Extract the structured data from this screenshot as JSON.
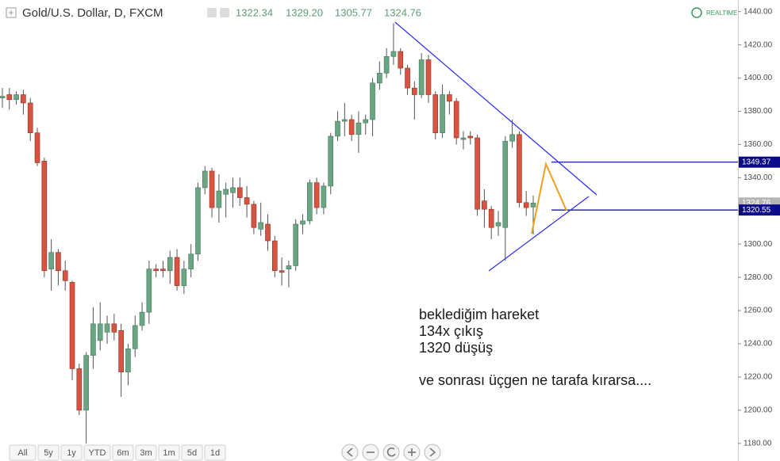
{
  "chart_data": {
    "type": "candlestick",
    "title": "Gold/U.S. Dollar, D, FXCM",
    "last_value_labels": [
      "1322.34",
      "1329.20",
      "1305.77",
      "1324.76"
    ],
    "status": "REALTIME",
    "up_color": "#6ba583",
    "down_color": "#d75442",
    "open": [
      1388,
      1390,
      1387,
      1390,
      1385,
      1367,
      1350,
      1285,
      1295,
      1284,
      1277,
      1225,
      1200,
      1233,
      1242,
      1247,
      1252,
      1248,
      1223,
      1237,
      1251,
      1259,
      1285,
      1285,
      1284,
      1292,
      1275,
      1285,
      1294,
      1334,
      1344,
      1322,
      1330,
      1331,
      1334,
      1328,
      1324,
      1309,
      1312,
      1302,
      1284,
      1285,
      1287,
      1312,
      1314,
      1337,
      1322,
      1335,
      1365,
      1374,
      1375,
      1366,
      1373,
      1375,
      1397,
      1403,
      1413,
      1416,
      1406,
      1394,
      1390,
      1411,
      1390,
      1367,
      1390,
      1386,
      1363,
      1365,
      1364,
      1326,
      1321,
      1311,
      1310,
      1362,
      1366,
      1325,
      1322.34
    ],
    "high": [
      1394,
      1394,
      1392,
      1393,
      1388,
      1370,
      1352,
      1303,
      1297,
      1290,
      1278,
      1228,
      1235,
      1262,
      1265,
      1257,
      1258,
      1252,
      1240,
      1257,
      1265,
      1290,
      1288,
      1290,
      1296,
      1297,
      1290,
      1300,
      1337,
      1347,
      1346,
      1342,
      1337,
      1340,
      1340,
      1335,
      1326,
      1325,
      1318,
      1305,
      1292,
      1290,
      1315,
      1318,
      1339,
      1340,
      1337,
      1367,
      1380,
      1385,
      1378,
      1380,
      1378,
      1400,
      1410,
      1418,
      1433,
      1418,
      1408,
      1398,
      1415,
      1414,
      1392,
      1396,
      1392,
      1388,
      1368,
      1368,
      1366,
      1333,
      1323,
      1320,
      1365,
      1375,
      1368,
      1332,
      1329.2
    ],
    "low": [
      1382,
      1381,
      1384,
      1378,
      1362,
      1347,
      1280,
      1272,
      1275,
      1272,
      1218,
      1197,
      1180,
      1225,
      1236,
      1240,
      1242,
      1208,
      1215,
      1232,
      1248,
      1252,
      1280,
      1280,
      1276,
      1272,
      1270,
      1280,
      1290,
      1330,
      1316,
      1313,
      1316,
      1322,
      1323,
      1316,
      1306,
      1305,
      1296,
      1280,
      1275,
      1274,
      1284,
      1306,
      1312,
      1318,
      1318,
      1330,
      1362,
      1365,
      1362,
      1355,
      1366,
      1365,
      1393,
      1400,
      1408,
      1402,
      1390,
      1375,
      1388,
      1385,
      1363,
      1364,
      1378,
      1360,
      1357,
      1360,
      1317,
      1310,
      1303,
      1305,
      1290,
      1358,
      1322,
      1317,
      1305.77
    ],
    "close": [
      1389,
      1387,
      1390,
      1385,
      1367,
      1349,
      1284,
      1295,
      1284,
      1278,
      1225,
      1200,
      1233,
      1252,
      1252,
      1252,
      1247,
      1223,
      1237,
      1251,
      1259,
      1285,
      1284,
      1284,
      1292,
      1275,
      1285,
      1294,
      1334,
      1344,
      1322,
      1332,
      1333,
      1334,
      1328,
      1324,
      1310,
      1313,
      1302,
      1284,
      1283,
      1287,
      1312,
      1314,
      1337,
      1322,
      1335,
      1365,
      1374,
      1375,
      1366,
      1373,
      1375,
      1397,
      1403,
      1413,
      1416,
      1406,
      1394,
      1390,
      1411,
      1390,
      1367,
      1390,
      1386,
      1364,
      1364,
      1364,
      1321,
      1321,
      1310,
      1313,
      1362,
      1366,
      1325,
      1322,
      1324.76
    ],
    "ylim": [
      1178,
      1447
    ],
    "yticks": [
      {
        "value": 1180,
        "label": "1180.00"
      },
      {
        "value": 1200,
        "label": "1200.00"
      },
      {
        "value": 1220,
        "label": "1220.00"
      },
      {
        "value": 1240,
        "label": "1240.00"
      },
      {
        "value": 1260,
        "label": "1260.00"
      },
      {
        "value": 1280,
        "label": "1280.00"
      },
      {
        "value": 1300,
        "label": "1300.00"
      },
      {
        "value": 1320,
        "label": "1320.00"
      },
      {
        "value": 1340,
        "label": "1340.00"
      },
      {
        "value": 1360,
        "label": "1360.00"
      },
      {
        "value": 1380,
        "label": "1380.00"
      },
      {
        "value": 1400,
        "label": "1400.00"
      },
      {
        "value": 1420,
        "label": "1420.00"
      },
      {
        "value": 1440,
        "label": "1440.00"
      }
    ],
    "price_lines": [
      1349.37,
      1320.55
    ],
    "annotations": [
      "beklediğim hareket",
      "134x çıkış",
      "1320 düşüş",
      "ve sonrası üçgen ne tarafa kırarsa...."
    ]
  },
  "toolbar": {
    "ranges": [
      "All",
      "5y",
      "1y",
      "YTD",
      "6m",
      "3m",
      "1m",
      "5d",
      "1d"
    ]
  }
}
